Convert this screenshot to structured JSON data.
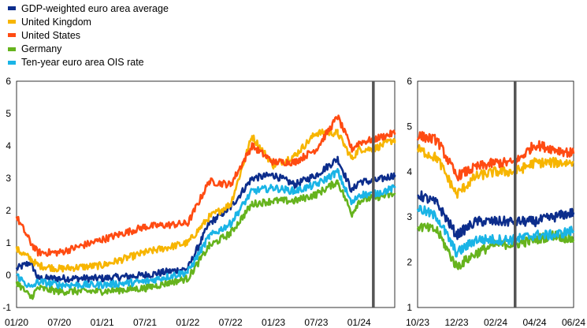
{
  "legend": [
    {
      "label": "GDP-weighted euro area average",
      "color": "#0c2d8c"
    },
    {
      "label": "United Kingdom",
      "color": "#f7b500"
    },
    {
      "label": "United States",
      "color": "#ff4b12"
    },
    {
      "label": "Germany",
      "color": "#66b31d"
    },
    {
      "label": "Ten-year euro area OIS rate",
      "color": "#1ab4e6"
    }
  ],
  "chart_data": [
    {
      "type": "line",
      "x_ticks": [
        "01/20",
        "07/20",
        "01/21",
        "07/21",
        "01/22",
        "07/22",
        "01/23",
        "07/23",
        "01/24"
      ],
      "x_range": [
        "01/20",
        "06/24"
      ],
      "ylim": [
        -1,
        6
      ],
      "y_ticks": [
        "6",
        "5",
        "4",
        "3",
        "2",
        "1",
        "0",
        "-1"
      ],
      "grid": false,
      "vertical_marker": "03/24",
      "series": [
        {
          "name": "GDP-weighted euro area average",
          "color": "#0c2d8c",
          "x": [
            "01/20",
            "03/20",
            "04/20",
            "07/20",
            "01/21",
            "07/21",
            "01/22",
            "04/22",
            "07/22",
            "10/22",
            "01/23",
            "04/23",
            "07/23",
            "10/23",
            "12/23",
            "01/24",
            "03/24",
            "06/24"
          ],
          "values": [
            0.2,
            0.4,
            -0.1,
            -0.1,
            -0.1,
            0.0,
            0.2,
            1.6,
            2.1,
            3.0,
            3.1,
            2.8,
            3.1,
            3.6,
            2.6,
            2.9,
            2.9,
            3.1
          ]
        },
        {
          "name": "United Kingdom",
          "color": "#f7b500",
          "x": [
            "01/20",
            "03/20",
            "04/20",
            "07/20",
            "01/21",
            "07/21",
            "01/22",
            "04/22",
            "07/22",
            "10/22",
            "01/23",
            "04/23",
            "07/23",
            "10/23",
            "12/23",
            "01/24",
            "03/24",
            "06/24"
          ],
          "values": [
            0.8,
            0.5,
            0.3,
            0.2,
            0.3,
            0.7,
            1.0,
            1.8,
            2.2,
            4.3,
            3.4,
            3.7,
            4.4,
            4.4,
            3.6,
            3.9,
            3.9,
            4.2
          ]
        },
        {
          "name": "United States",
          "color": "#ff4b12",
          "x": [
            "01/20",
            "03/20",
            "04/20",
            "07/20",
            "01/21",
            "07/21",
            "01/22",
            "04/22",
            "07/22",
            "10/22",
            "01/23",
            "04/23",
            "07/23",
            "10/23",
            "12/23",
            "01/24",
            "03/24",
            "06/24"
          ],
          "values": [
            1.8,
            1.0,
            0.7,
            0.7,
            1.1,
            1.5,
            1.6,
            2.9,
            2.8,
            4.0,
            3.5,
            3.5,
            3.9,
            4.9,
            3.9,
            4.1,
            4.2,
            4.4
          ]
        },
        {
          "name": "Germany",
          "color": "#66b31d",
          "x": [
            "01/20",
            "03/20",
            "04/20",
            "07/20",
            "01/21",
            "07/21",
            "01/22",
            "04/22",
            "07/22",
            "10/22",
            "01/23",
            "04/23",
            "07/23",
            "10/23",
            "12/23",
            "01/24",
            "03/24",
            "06/24"
          ],
          "values": [
            -0.2,
            -0.7,
            -0.4,
            -0.5,
            -0.5,
            -0.4,
            -0.1,
            0.9,
            1.3,
            2.2,
            2.3,
            2.3,
            2.5,
            2.9,
            1.9,
            2.3,
            2.4,
            2.5
          ]
        },
        {
          "name": "Ten-year euro area OIS rate",
          "color": "#1ab4e6",
          "x": [
            "01/20",
            "03/20",
            "04/20",
            "07/20",
            "01/21",
            "07/21",
            "01/22",
            "04/22",
            "07/22",
            "10/22",
            "01/23",
            "04/23",
            "07/23",
            "10/23",
            "12/23",
            "01/24",
            "03/24",
            "06/24"
          ],
          "values": [
            0.0,
            -0.4,
            -0.2,
            -0.3,
            -0.3,
            -0.2,
            0.1,
            1.2,
            1.6,
            2.6,
            2.7,
            2.6,
            2.8,
            3.2,
            2.2,
            2.5,
            2.5,
            2.7
          ]
        }
      ]
    },
    {
      "type": "line",
      "x_ticks": [
        "10/23",
        "12/23",
        "02/24",
        "04/24",
        "06/24"
      ],
      "x_range": [
        "10/23",
        "06/24"
      ],
      "ylim": [
        1,
        6
      ],
      "y_ticks": [
        "6",
        "5",
        "4",
        "3",
        "2",
        "1"
      ],
      "grid": false,
      "vertical_marker": "03/24",
      "series": [
        {
          "name": "GDP-weighted euro area average",
          "color": "#0c2d8c",
          "x": [
            "10/23",
            "11/23",
            "12/23",
            "01/24",
            "02/24",
            "03/24",
            "04/24",
            "05/24",
            "06/24"
          ],
          "values": [
            3.5,
            3.3,
            2.6,
            2.9,
            2.9,
            2.9,
            2.9,
            3.0,
            3.1
          ]
        },
        {
          "name": "United Kingdom",
          "color": "#f7b500",
          "x": [
            "10/23",
            "11/23",
            "12/23",
            "01/24",
            "02/24",
            "03/24",
            "04/24",
            "05/24",
            "06/24"
          ],
          "values": [
            4.5,
            4.3,
            3.5,
            3.9,
            4.0,
            4.0,
            4.2,
            4.2,
            4.2
          ]
        },
        {
          "name": "United States",
          "color": "#ff4b12",
          "x": [
            "10/23",
            "11/23",
            "12/23",
            "01/24",
            "02/24",
            "03/24",
            "04/24",
            "05/24",
            "06/24"
          ],
          "values": [
            4.8,
            4.7,
            3.9,
            4.1,
            4.2,
            4.2,
            4.6,
            4.5,
            4.4
          ]
        },
        {
          "name": "Germany",
          "color": "#66b31d",
          "x": [
            "10/23",
            "11/23",
            "12/23",
            "01/24",
            "02/24",
            "03/24",
            "04/24",
            "05/24",
            "06/24"
          ],
          "values": [
            2.8,
            2.7,
            1.9,
            2.2,
            2.4,
            2.4,
            2.5,
            2.6,
            2.5
          ]
        },
        {
          "name": "Ten-year euro area OIS rate",
          "color": "#1ab4e6",
          "x": [
            "10/23",
            "11/23",
            "12/23",
            "01/24",
            "02/24",
            "03/24",
            "04/24",
            "05/24",
            "06/24"
          ],
          "values": [
            3.2,
            3.0,
            2.2,
            2.5,
            2.5,
            2.5,
            2.6,
            2.6,
            2.7
          ]
        }
      ]
    }
  ]
}
